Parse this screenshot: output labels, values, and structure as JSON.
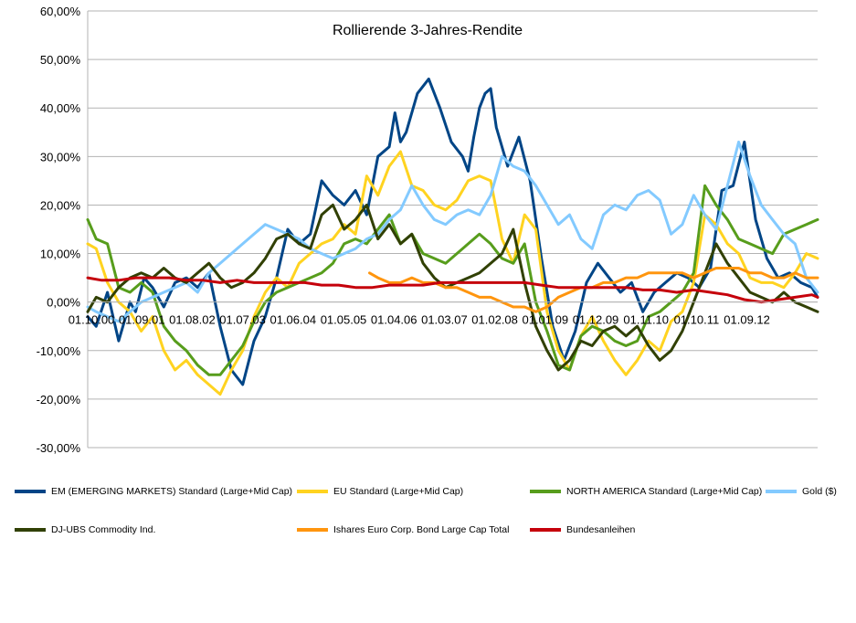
{
  "chart_data": {
    "type": "line",
    "title": "Rollierende 3-Jahres-Rendite",
    "xlabel": "",
    "ylabel": "",
    "ylim": [
      -30,
      60
    ],
    "ytick_labels": [
      "60,00%",
      "50,00%",
      "40,00%",
      "30,00%",
      "20,00%",
      "10,00%",
      "0,00%",
      "-10,00%",
      "-20,00%",
      "-30,00%"
    ],
    "categories": [
      "01.10.00",
      "01.09.01",
      "01.08.02",
      "01.07.03",
      "01.06.04",
      "01.05.05",
      "01.04.06",
      "01.03.07",
      "01.02.08",
      "01.01.09",
      "01.12.09",
      "01.11.10",
      "01.10.11",
      "01.09.12"
    ],
    "x_start": 2000.75,
    "x_end": 2013.7,
    "legend_position": "bottom",
    "series": [
      {
        "name": "EM (EMERGING MARKETS) Standard (Large+Mid Cap)",
        "color": "#004586",
        "x": [
          2000.75,
          2000.9,
          2001.1,
          2001.3,
          2001.5,
          2001.6,
          2001.75,
          2001.9,
          2002.1,
          2002.3,
          2002.5,
          2002.7,
          2002.9,
          2003.1,
          2003.3,
          2003.5,
          2003.7,
          2003.9,
          2004.1,
          2004.3,
          2004.5,
          2004.7,
          2004.9,
          2005.1,
          2005.3,
          2005.5,
          2005.7,
          2005.9,
          2006.1,
          2006.2,
          2006.3,
          2006.4,
          2006.6,
          2006.8,
          2007.0,
          2007.2,
          2007.4,
          2007.5,
          2007.6,
          2007.7,
          2007.8,
          2007.9,
          2008.0,
          2008.2,
          2008.4,
          2008.6,
          2008.8,
          2009.0,
          2009.2,
          2009.4,
          2009.6,
          2009.8,
          2010.0,
          2010.2,
          2010.4,
          2010.6,
          2010.8,
          2011.0,
          2011.2,
          2011.4,
          2011.6,
          2011.8,
          2012.0,
          2012.2,
          2012.4,
          2012.6,
          2012.8,
          2013.0,
          2013.2,
          2013.4,
          2013.6,
          2013.7
        ],
        "values": [
          -3,
          -5,
          2,
          -8,
          0,
          -2,
          5,
          3,
          -1,
          4,
          5,
          3,
          6,
          -5,
          -14,
          -17,
          -8,
          -3,
          5,
          15,
          12,
          14,
          25,
          22,
          20,
          23,
          18,
          30,
          32,
          39,
          33,
          35,
          43,
          46,
          40,
          33,
          30,
          27,
          34,
          40,
          43,
          44,
          36,
          28,
          34,
          25,
          9,
          -5,
          -12,
          -6,
          4,
          8,
          5,
          2,
          4,
          -2,
          2,
          4,
          6,
          5,
          3,
          7,
          23,
          24,
          33,
          17,
          9,
          5,
          6,
          4,
          3,
          1
        ]
      },
      {
        "name": "EU Standard (Large+Mid Cap)",
        "color": "#ffd320",
        "x": [
          2000.75,
          2000.9,
          2001.1,
          2001.3,
          2001.5,
          2001.7,
          2001.9,
          2002.1,
          2002.3,
          2002.5,
          2002.7,
          2002.9,
          2003.1,
          2003.3,
          2003.5,
          2003.7,
          2003.9,
          2004.1,
          2004.3,
          2004.5,
          2004.7,
          2004.9,
          2005.1,
          2005.3,
          2005.5,
          2005.7,
          2005.9,
          2006.1,
          2006.3,
          2006.5,
          2006.7,
          2006.9,
          2007.1,
          2007.3,
          2007.5,
          2007.7,
          2007.9,
          2008.1,
          2008.3,
          2008.5,
          2008.7,
          2008.9,
          2009.1,
          2009.3,
          2009.5,
          2009.7,
          2009.9,
          2010.1,
          2010.3,
          2010.5,
          2010.7,
          2010.9,
          2011.1,
          2011.3,
          2011.5,
          2011.7,
          2011.9,
          2012.1,
          2012.3,
          2012.5,
          2012.7,
          2012.9,
          2013.1,
          2013.3,
          2013.5,
          2013.7
        ],
        "values": [
          12,
          11,
          4,
          0,
          -2,
          -6,
          -3,
          -10,
          -14,
          -12,
          -15,
          -17,
          -19,
          -14,
          -10,
          -3,
          2,
          5,
          3,
          8,
          10,
          12,
          13,
          16,
          14,
          26,
          22,
          28,
          31,
          24,
          23,
          20,
          19,
          21,
          25,
          26,
          25,
          13,
          8,
          18,
          15,
          -2,
          -10,
          -14,
          -7,
          -3,
          -8,
          -12,
          -15,
          -12,
          -8,
          -10,
          -4,
          -2,
          4,
          18,
          16,
          12,
          10,
          5,
          4,
          4,
          3,
          6,
          10,
          9
        ]
      },
      {
        "name": "NORTH AMERICA Standard (Large+Mid Cap)",
        "color": "#579d1c",
        "x": [
          2000.75,
          2000.9,
          2001.1,
          2001.3,
          2001.5,
          2001.7,
          2001.9,
          2002.1,
          2002.3,
          2002.5,
          2002.7,
          2002.9,
          2003.1,
          2003.3,
          2003.5,
          2003.7,
          2003.9,
          2004.1,
          2004.3,
          2004.5,
          2004.7,
          2004.9,
          2005.1,
          2005.3,
          2005.5,
          2005.7,
          2005.9,
          2006.1,
          2006.3,
          2006.5,
          2006.7,
          2006.9,
          2007.1,
          2007.3,
          2007.5,
          2007.7,
          2007.9,
          2008.1,
          2008.3,
          2008.5,
          2008.7,
          2008.9,
          2009.1,
          2009.3,
          2009.5,
          2009.7,
          2009.9,
          2010.1,
          2010.3,
          2010.5,
          2010.7,
          2010.9,
          2011.1,
          2011.3,
          2011.5,
          2011.7,
          2011.9,
          2012.1,
          2012.3,
          2012.5,
          2012.7,
          2012.9,
          2013.1,
          2013.3,
          2013.5,
          2013.7
        ],
        "values": [
          17,
          13,
          12,
          3,
          2,
          4,
          2,
          -5,
          -8,
          -10,
          -13,
          -15,
          -15,
          -12,
          -9,
          -4,
          0,
          2,
          3,
          4,
          5,
          6,
          8,
          12,
          13,
          12,
          15,
          18,
          12,
          14,
          10,
          9,
          8,
          10,
          12,
          14,
          12,
          9,
          8,
          12,
          0,
          -6,
          -13,
          -14,
          -7,
          -5,
          -6,
          -8,
          -9,
          -8,
          -3,
          -2,
          0,
          2,
          6,
          24,
          20,
          17,
          13,
          12,
          11,
          10,
          14,
          15,
          16,
          17
        ]
      },
      {
        "name": "Gold ($)",
        "color": "#83caff",
        "x": [
          2000.75,
          2000.9,
          2001.1,
          2001.3,
          2001.5,
          2001.7,
          2001.9,
          2002.1,
          2002.3,
          2002.5,
          2002.7,
          2002.9,
          2003.1,
          2003.3,
          2003.5,
          2003.7,
          2003.9,
          2004.1,
          2004.3,
          2004.5,
          2004.7,
          2004.9,
          2005.1,
          2005.3,
          2005.5,
          2005.7,
          2005.9,
          2006.1,
          2006.3,
          2006.5,
          2006.7,
          2006.9,
          2007.1,
          2007.3,
          2007.5,
          2007.7,
          2007.9,
          2008.1,
          2008.3,
          2008.5,
          2008.7,
          2008.9,
          2009.1,
          2009.3,
          2009.5,
          2009.7,
          2009.9,
          2010.1,
          2010.3,
          2010.5,
          2010.7,
          2010.9,
          2011.1,
          2011.3,
          2011.5,
          2011.7,
          2011.9,
          2012.1,
          2012.3,
          2012.5,
          2012.7,
          2012.9,
          2013.1,
          2013.3,
          2013.5,
          2013.7
        ],
        "values": [
          -1,
          -2,
          -3,
          -4,
          -2,
          0,
          1,
          2,
          3,
          4,
          2,
          6,
          8,
          10,
          12,
          14,
          16,
          15,
          14,
          13,
          11,
          10,
          9,
          10,
          11,
          13,
          14,
          17,
          19,
          24,
          20,
          17,
          16,
          18,
          19,
          18,
          22,
          30,
          28,
          27,
          24,
          20,
          16,
          18,
          13,
          11,
          18,
          20,
          19,
          22,
          23,
          21,
          14,
          16,
          22,
          18,
          15,
          24,
          33,
          26,
          20,
          17,
          14,
          12,
          5,
          2
        ]
      },
      {
        "name": "DJ-UBS Commodity Ind.",
        "color": "#314004",
        "x": [
          2000.75,
          2000.9,
          2001.1,
          2001.3,
          2001.5,
          2001.7,
          2001.9,
          2002.1,
          2002.3,
          2002.5,
          2002.7,
          2002.9,
          2003.1,
          2003.3,
          2003.5,
          2003.7,
          2003.9,
          2004.1,
          2004.3,
          2004.5,
          2004.7,
          2004.9,
          2005.1,
          2005.3,
          2005.5,
          2005.7,
          2005.9,
          2006.1,
          2006.3,
          2006.5,
          2006.7,
          2006.9,
          2007.1,
          2007.3,
          2007.5,
          2007.7,
          2007.9,
          2008.1,
          2008.3,
          2008.5,
          2008.7,
          2008.9,
          2009.1,
          2009.3,
          2009.5,
          2009.7,
          2009.9,
          2010.1,
          2010.3,
          2010.5,
          2010.7,
          2010.9,
          2011.1,
          2011.3,
          2011.5,
          2011.7,
          2011.9,
          2012.1,
          2012.3,
          2012.5,
          2012.7,
          2012.9,
          2013.1,
          2013.3,
          2013.5,
          2013.7
        ],
        "values": [
          -2,
          1,
          0,
          3,
          5,
          6,
          5,
          7,
          5,
          4,
          6,
          8,
          5,
          3,
          4,
          6,
          9,
          13,
          14,
          12,
          11,
          18,
          20,
          15,
          17,
          20,
          13,
          16,
          12,
          14,
          8,
          5,
          3,
          4,
          5,
          6,
          8,
          10,
          15,
          4,
          -5,
          -10,
          -14,
          -12,
          -8,
          -9,
          -6,
          -5,
          -7,
          -5,
          -9,
          -12,
          -10,
          -6,
          0,
          6,
          12,
          8,
          5,
          2,
          1,
          0,
          2,
          0,
          -1,
          -2
        ]
      },
      {
        "name": "Ishares Euro Corp. Bond Large Cap Total",
        "color": "#ff950e",
        "x": [
          2005.75,
          2005.9,
          2006.1,
          2006.3,
          2006.5,
          2006.7,
          2006.9,
          2007.1,
          2007.3,
          2007.5,
          2007.7,
          2007.9,
          2008.1,
          2008.3,
          2008.5,
          2008.7,
          2008.9,
          2009.1,
          2009.3,
          2009.5,
          2009.7,
          2009.9,
          2010.1,
          2010.3,
          2010.5,
          2010.7,
          2010.9,
          2011.1,
          2011.3,
          2011.5,
          2011.7,
          2011.9,
          2012.1,
          2012.3,
          2012.5,
          2012.7,
          2012.9,
          2013.1,
          2013.3,
          2013.5,
          2013.7
        ],
        "values": [
          6,
          5,
          4,
          4,
          5,
          4,
          4,
          3,
          3,
          2,
          1,
          1,
          0,
          -1,
          -1,
          -2,
          -1,
          1,
          2,
          3,
          3,
          4,
          4,
          5,
          5,
          6,
          6,
          6,
          6,
          5,
          6,
          7,
          7,
          7,
          6,
          6,
          5,
          5,
          6,
          5,
          5
        ]
      },
      {
        "name": "Bundesanleihen",
        "color": "#c5000b",
        "x": [
          2000.75,
          2001.0,
          2001.3,
          2001.6,
          2001.9,
          2002.2,
          2002.5,
          2002.8,
          2003.1,
          2003.4,
          2003.7,
          2004.0,
          2004.3,
          2004.6,
          2004.9,
          2005.2,
          2005.5,
          2005.8,
          2006.1,
          2006.4,
          2006.7,
          2007.0,
          2007.3,
          2007.6,
          2007.9,
          2008.2,
          2008.5,
          2008.8,
          2009.1,
          2009.4,
          2009.7,
          2010.0,
          2010.3,
          2010.6,
          2010.9,
          2011.2,
          2011.5,
          2011.8,
          2012.1,
          2012.4,
          2012.7,
          2013.0,
          2013.3,
          2013.6,
          2013.7
        ],
        "values": [
          5,
          4.5,
          4.5,
          5,
          5,
          5,
          4.5,
          4.5,
          4,
          4.5,
          4,
          4,
          4,
          4,
          3.5,
          3.5,
          3,
          3,
          3.5,
          3.5,
          3.5,
          4,
          4,
          4,
          4,
          4,
          4,
          3.5,
          3,
          3,
          3,
          3,
          3,
          2.5,
          2.5,
          2,
          2.5,
          2,
          1.5,
          0.5,
          0,
          0.5,
          1,
          1.5,
          1
        ]
      }
    ]
  }
}
